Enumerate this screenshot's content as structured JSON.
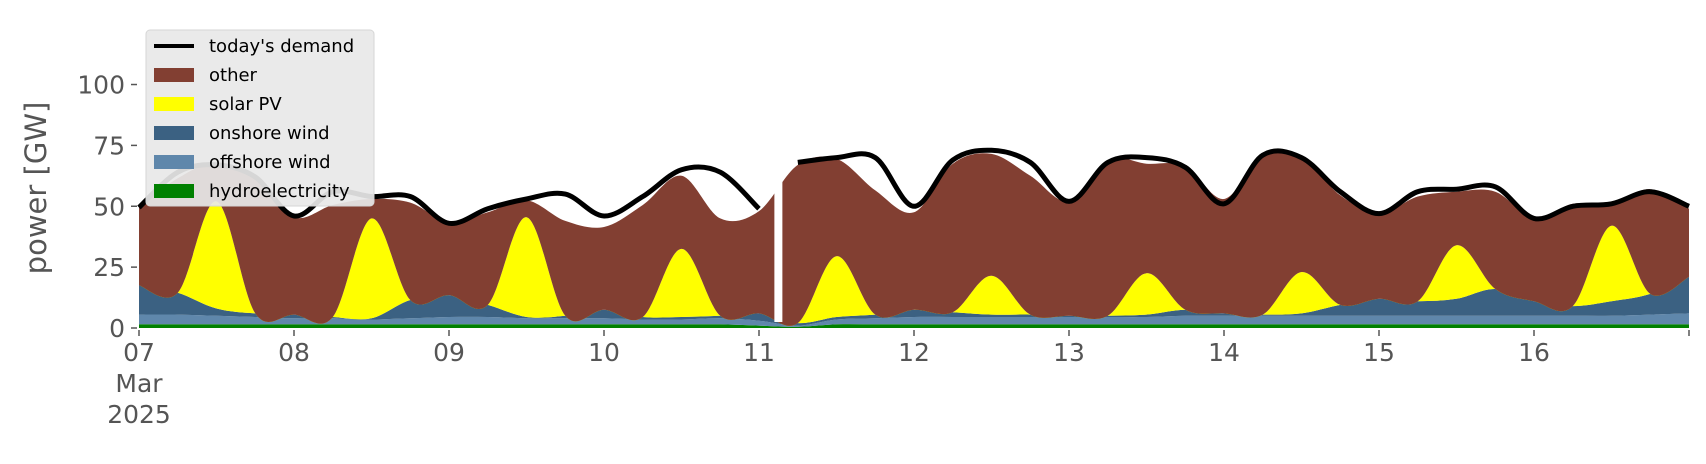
{
  "chart_data": {
    "type": "area",
    "title": "",
    "xlabel": "",
    "ylabel": "power [GW]",
    "ylim": [
      0,
      115
    ],
    "xlim": [
      "2025-03-07",
      "2025-03-17"
    ],
    "grid": false,
    "legend_placement": "top-left",
    "yticks": [
      0,
      25,
      50,
      75,
      100
    ],
    "ytick_labels": [
      "0",
      "25",
      "50",
      "75",
      "100"
    ],
    "xticks": [
      {
        "date": "2025-03-07",
        "lines": [
          "07",
          "Mar",
          "2025"
        ]
      },
      {
        "date": "2025-03-08",
        "lines": [
          "08"
        ]
      },
      {
        "date": "2025-03-09",
        "lines": [
          "09"
        ]
      },
      {
        "date": "2025-03-10",
        "lines": [
          "10"
        ]
      },
      {
        "date": "2025-03-11",
        "lines": [
          "11"
        ]
      },
      {
        "date": "2025-03-12",
        "lines": [
          "12"
        ]
      },
      {
        "date": "2025-03-13",
        "lines": [
          "13"
        ]
      },
      {
        "date": "2025-03-14",
        "lines": [
          "14"
        ]
      },
      {
        "date": "2025-03-15",
        "lines": [
          "15"
        ]
      },
      {
        "date": "2025-03-16",
        "lines": [
          "16"
        ]
      }
    ],
    "x": [
      "2025-03-07 00:00",
      "2025-03-07 06:00",
      "2025-03-07 12:00",
      "2025-03-07 18:00",
      "2025-03-08 00:00",
      "2025-03-08 06:00",
      "2025-03-08 12:00",
      "2025-03-08 18:00",
      "2025-03-09 00:00",
      "2025-03-09 06:00",
      "2025-03-09 12:00",
      "2025-03-09 18:00",
      "2025-03-10 00:00",
      "2025-03-10 06:00",
      "2025-03-10 12:00",
      "2025-03-10 18:00",
      "2025-03-11 00:00",
      "2025-03-11 06:00",
      "2025-03-11 12:00",
      "2025-03-11 18:00",
      "2025-03-12 00:00",
      "2025-03-12 06:00",
      "2025-03-12 12:00",
      "2025-03-12 18:00",
      "2025-03-13 00:00",
      "2025-03-13 06:00",
      "2025-03-13 12:00",
      "2025-03-13 18:00",
      "2025-03-14 00:00",
      "2025-03-14 06:00",
      "2025-03-14 12:00",
      "2025-03-14 18:00",
      "2025-03-15 00:00",
      "2025-03-15 06:00",
      "2025-03-15 12:00",
      "2025-03-15 18:00",
      "2025-03-16 00:00",
      "2025-03-16 06:00",
      "2025-03-16 12:00",
      "2025-03-16 18:00",
      "2025-03-17 00:00"
    ],
    "series": [
      {
        "name": "hydroelectricity",
        "color": "#008000",
        "values": [
          1.5,
          1.5,
          1.5,
          1.5,
          1.5,
          1.5,
          1.5,
          1.5,
          1.5,
          1.5,
          1.5,
          1.5,
          1.5,
          1.5,
          1.5,
          1.5,
          1.0,
          0.5,
          1.5,
          1.5,
          1.5,
          1.5,
          1.5,
          1.5,
          1.5,
          1.5,
          1.5,
          1.5,
          1.5,
          1.5,
          1.5,
          1.5,
          1.5,
          1.5,
          1.5,
          1.5,
          1.5,
          1.5,
          1.5,
          1.5,
          1.5
        ]
      },
      {
        "name": "offshore wind",
        "color": "#5f87ab",
        "values": [
          4,
          4,
          3.5,
          3,
          2.5,
          2.5,
          2,
          2.5,
          3,
          3,
          2.5,
          2.5,
          2.5,
          2,
          2,
          2.5,
          2,
          0.5,
          2,
          2.5,
          3,
          3,
          3,
          3,
          3,
          3,
          3,
          3.5,
          3.5,
          3.5,
          3.5,
          3.5,
          3.5,
          3.5,
          3.5,
          3.5,
          3.5,
          3.5,
          3.5,
          4,
          4.5
        ]
      },
      {
        "name": "onshore wind",
        "color": "#3b6182",
        "values": [
          12,
          9,
          3,
          1.5,
          1.5,
          0.5,
          0.5,
          7.5,
          9,
          5,
          0.5,
          1,
          3.5,
          1,
          1,
          1,
          3,
          1,
          1,
          1.5,
          3,
          2,
          1,
          1,
          0.5,
          0.5,
          1,
          2.5,
          1,
          0.5,
          1,
          4.5,
          7,
          6,
          7,
          11,
          6,
          4,
          6,
          8.5,
          15
        ]
      },
      {
        "name": "solar PV",
        "color": "#ffff00",
        "values": [
          0,
          0,
          44,
          0,
          0,
          0,
          41,
          0,
          0,
          0,
          41,
          0,
          0,
          0,
          28,
          0,
          0,
          0,
          25,
          0,
          0,
          0,
          16,
          0,
          0,
          0,
          17,
          0,
          0,
          0,
          17,
          0,
          0,
          0,
          22,
          0,
          0,
          0,
          31,
          0,
          0
        ]
      },
      {
        "name": "other",
        "color": "#823f32",
        "values": [
          32,
          47,
          16,
          56,
          40,
          46,
          8,
          40,
          30,
          38,
          7,
          39,
          34,
          46,
          30,
          40,
          42,
          65,
          40,
          51,
          40,
          61,
          50,
          57,
          47,
          64,
          45,
          59,
          47,
          65,
          47,
          45,
          35,
          43,
          22,
          40,
          34,
          42,
          9,
          43,
          28
        ]
      }
    ],
    "demand": {
      "name": "today's demand",
      "color": "#000000",
      "values": [
        49.5,
        64,
        67,
        62,
        46,
        56,
        54,
        54,
        43,
        49,
        53,
        55,
        46,
        54,
        65,
        64,
        49,
        68,
        70,
        70,
        50,
        69,
        73,
        68,
        52,
        68,
        70,
        66,
        51,
        71,
        70,
        56,
        47,
        56,
        57,
        58,
        45,
        50,
        51,
        56,
        50
      ]
    },
    "gap_segment": [
      "2025-03-11 00:00",
      "2025-03-11 06:00"
    ]
  }
}
